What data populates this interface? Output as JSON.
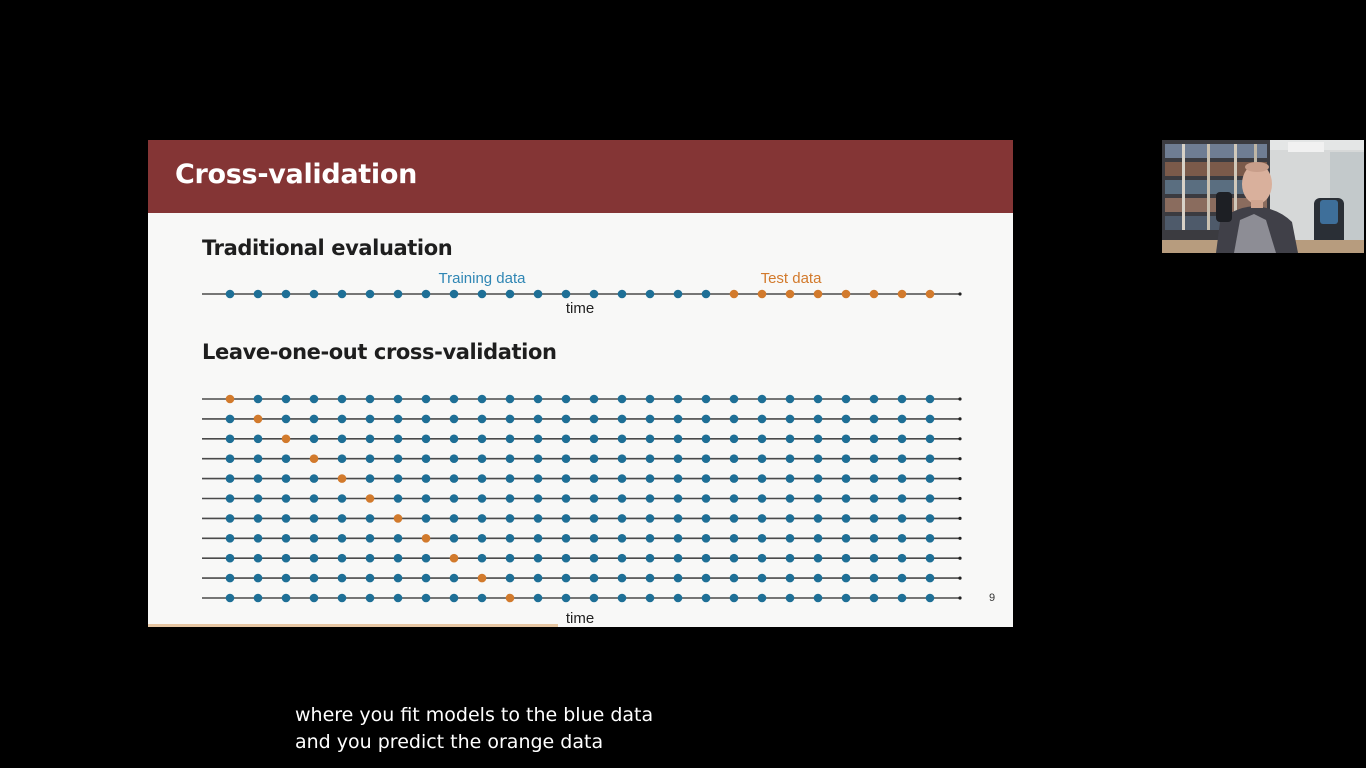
{
  "slide": {
    "title": "Cross-validation",
    "traditional": {
      "heading": "Traditional evaluation",
      "training_label": "Training data",
      "test_label": "Test data",
      "axis_label": "time",
      "total_points": 26,
      "test_points": 8
    },
    "loocv": {
      "heading": "Leave-one-out cross-validation",
      "axis_label": "time",
      "rows": 11,
      "points_per_row": 26
    },
    "page_number": "9"
  },
  "subtitles": {
    "line1": "where you fit models to the blue data",
    "line2": "and you predict the orange data"
  },
  "colors": {
    "header": "#843535",
    "training": "#1e6f96",
    "test": "#d27a2c",
    "axis": "#4a4a4a"
  },
  "webcam": {
    "icon": "presenter-webcam-icon"
  }
}
